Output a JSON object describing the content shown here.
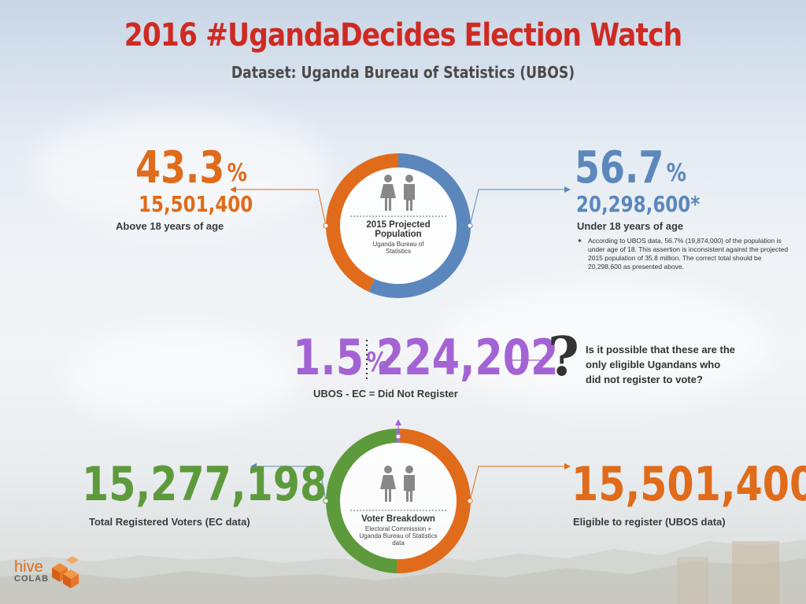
{
  "title": "2016 #UgandaDecides Election Watch",
  "subtitle": "Dataset: Uganda Bureau of Statistics (UBOS)",
  "population": {
    "left_percent": "43.3",
    "left_count": "15,501,400",
    "left_label": "Above 18 years of age",
    "right_percent": "56.7",
    "right_count": "20,298,600*",
    "right_label": "Under 18 years of age",
    "note_star": "✶",
    "note": "According to UBOS data, 56.7% (19,874,000) of the population is under age of 18. This assertion is inconsistent against the projected 2015 population of 35.8 million. The correct total should be 20,298,600 as presented above.",
    "center_title": "2015 Projected Population",
    "center_sub": "Uganda Bureau of Statistics",
    "percent_sign": "%"
  },
  "unregistered": {
    "percent": "1.5",
    "count": "224,202",
    "label": "UBOS - EC = Did Not Register",
    "question": "Is it possible that these are the only eligible Ugandans who did not register to vote?",
    "qmark": "?"
  },
  "voters": {
    "left_count": "15,277,198",
    "left_label": "Total Registered Voters (EC data)",
    "right_count": "15,501,400",
    "right_label": "Eligible to register (UBOS data)",
    "center_title": "Voter Breakdown",
    "center_sub": "Electoral Commission + Uganda Bureau of Statistics data"
  },
  "logo": {
    "hive": "hive",
    "colab": "COLAB"
  },
  "colors": {
    "orange": "#e06b1a",
    "blue": "#5b87bc",
    "green": "#5d9a3c",
    "purple": "#a463d4",
    "red": "#cf2a22"
  },
  "chart_data": [
    {
      "type": "pie",
      "style": "donut",
      "title": "2015 Projected Population",
      "categories": [
        "Above 18 years of age",
        "Under 18 years of age"
      ],
      "values": [
        43.3,
        56.7
      ],
      "counts": [
        15501400,
        20298600
      ],
      "colors": [
        "#e06b1a",
        "#5b87bc"
      ]
    },
    {
      "type": "pie",
      "style": "donut",
      "title": "Voter Breakdown",
      "categories": [
        "Total Registered Voters (EC data)",
        "Did Not Register",
        "Eligible to register (UBOS data)"
      ],
      "values": [
        15277198,
        224202,
        15501400
      ],
      "colors": [
        "#5d9a3c",
        "#a463d4",
        "#e06b1a"
      ]
    }
  ]
}
